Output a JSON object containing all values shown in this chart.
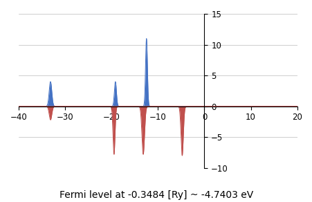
{
  "subtitle": "Fermi level at -0.3484 [Ry] ~ -4.7403 eV",
  "subtitle_fontsize": 10,
  "xlim": [
    -40,
    20
  ],
  "ylim": [
    -10,
    15
  ],
  "xticks": [
    -40,
    -30,
    -20,
    -10,
    0,
    10,
    20
  ],
  "yticks": [
    -10,
    -5,
    0,
    5,
    10,
    15
  ],
  "blue_color": "#4472C4",
  "red_color": "#C0504D",
  "background_color": "#FFFFFF",
  "blue_peaks": [
    {
      "x": -33.2,
      "height": 4.0,
      "sigma": 0.28
    },
    {
      "x": -19.2,
      "height": 4.0,
      "sigma": 0.22
    },
    {
      "x": -12.5,
      "height": 11.0,
      "sigma": 0.2
    }
  ],
  "red_peaks": [
    {
      "x": -33.2,
      "height": -2.2,
      "sigma": 0.28
    },
    {
      "x": -19.5,
      "height": -7.8,
      "sigma": 0.22
    },
    {
      "x": -13.2,
      "height": -7.8,
      "sigma": 0.28
    },
    {
      "x": -4.8,
      "height": -8.0,
      "sigma": 0.25
    }
  ]
}
